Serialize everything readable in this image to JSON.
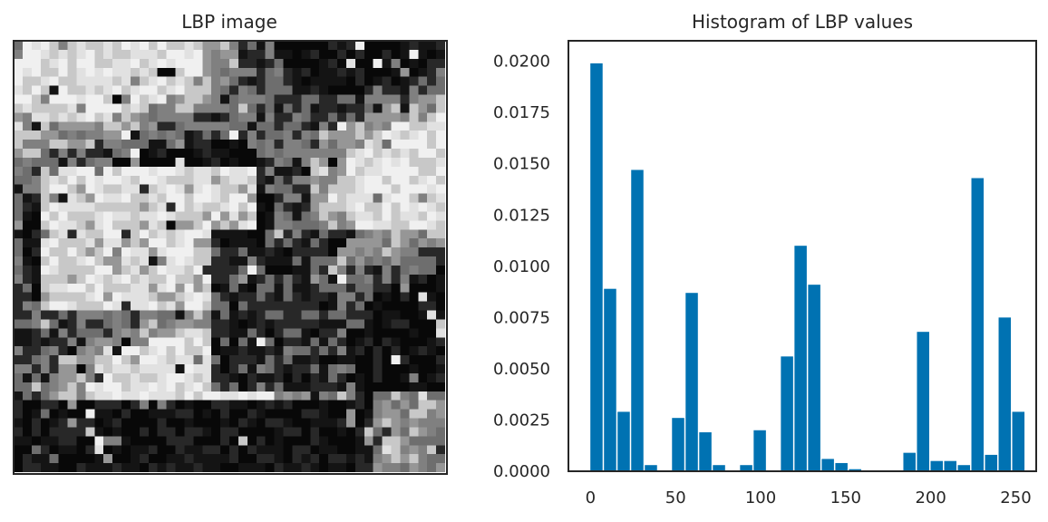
{
  "left_panel": {
    "title": "LBP image",
    "grid_size": 48,
    "seed": 1337
  },
  "chart_data": {
    "type": "bar",
    "title": "Histogram of LBP values",
    "xlabel": "",
    "ylabel": "",
    "x": [
      3.5,
      11.5,
      19.5,
      27.5,
      35.5,
      43.5,
      51.5,
      59.5,
      67.5,
      75.5,
      83.5,
      91.5,
      99.5,
      107.5,
      115.5,
      123.5,
      131.5,
      139.5,
      147.5,
      155.5,
      163.5,
      171.5,
      179.5,
      187.5,
      195.5,
      203.5,
      211.5,
      219.5,
      227.5,
      235.5,
      243.5,
      251.5
    ],
    "values": [
      0.0199,
      0.0089,
      0.0029,
      0.0147,
      0.0003,
      0.0,
      0.0026,
      0.0087,
      0.0019,
      0.0003,
      0.0,
      0.0003,
      0.002,
      0.0,
      0.0056,
      0.011,
      0.0091,
      0.0006,
      0.0004,
      0.0001,
      0.0,
      0.0,
      0.0,
      0.0009,
      0.0068,
      0.0005,
      0.0005,
      0.0003,
      0.0143,
      0.0008,
      0.0075,
      0.0029
    ],
    "bin_width": 7.2,
    "xlim": [
      -13,
      262
    ],
    "ylim": [
      0,
      0.021
    ],
    "xticks": [
      0,
      50,
      100,
      150,
      200,
      250
    ],
    "xtick_labels": [
      "0",
      "50",
      "100",
      "150",
      "200",
      "250"
    ],
    "yticks": [
      0,
      0.0025,
      0.005,
      0.0075,
      0.01,
      0.0125,
      0.015,
      0.0175,
      0.02
    ],
    "ytick_labels": [
      "0.0000",
      "0.0025",
      "0.0050",
      "0.0075",
      "0.0100",
      "0.0125",
      "0.0150",
      "0.0175",
      "0.0200"
    ],
    "grid": false,
    "colors": {
      "bar": "#0072b2",
      "axis": "#262626"
    }
  }
}
